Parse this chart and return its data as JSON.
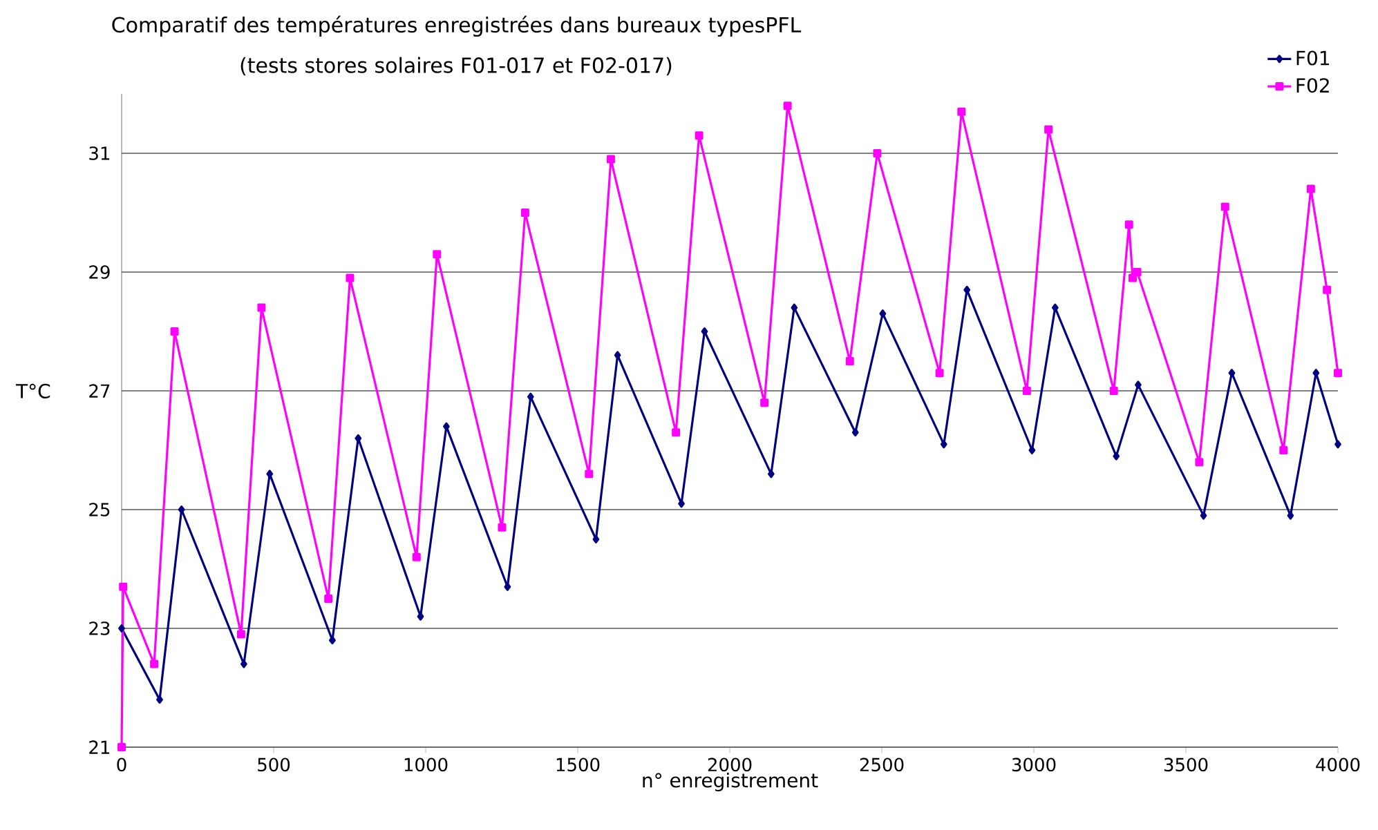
{
  "chart_data": {
    "type": "line",
    "title": "Comparatif des températures enregistrées dans bureaux typesPFL",
    "subtitle": "(tests stores solaires F01-017 et F02-017)",
    "xlabel": "n° enregistrement",
    "ylabel": "T°C",
    "xlim": [
      0,
      4000
    ],
    "xticks": [
      0,
      500,
      1000,
      1500,
      2000,
      2500,
      3000,
      3500,
      4000
    ],
    "ylim": [
      21,
      32
    ],
    "yticks": [
      21,
      23,
      25,
      27,
      29,
      31
    ],
    "grid": "y",
    "legend": "top right",
    "series": [
      {
        "name": "F01",
        "color": "#000080",
        "marker": "diamond",
        "x": [
          0,
          125,
          197,
          402,
          487,
          693,
          778,
          983,
          1068,
          1269,
          1345,
          1560,
          1631,
          1841,
          1917,
          2136,
          2212,
          2413,
          2503,
          2704,
          2780,
          2994,
          3070,
          3271,
          3343,
          3558,
          3651,
          3844,
          3928,
          4000
        ],
        "values": [
          23.0,
          21.8,
          25.0,
          22.4,
          25.6,
          22.8,
          26.2,
          23.2,
          26.4,
          23.7,
          26.9,
          24.5,
          27.6,
          25.1,
          28.0,
          25.6,
          28.4,
          26.3,
          28.3,
          26.1,
          28.7,
          26.0,
          28.4,
          25.9,
          27.1,
          24.9,
          27.3,
          24.9,
          27.3,
          26.1
        ]
      },
      {
        "name": "F02",
        "color": "#ff00ff",
        "marker": "square",
        "x": [
          0,
          5,
          107,
          174,
          393,
          460,
          680,
          751,
          970,
          1037,
          1251,
          1327,
          1537,
          1609,
          1823,
          1899,
          2114,
          2190,
          2395,
          2485,
          2690,
          2762,
          2977,
          3048,
          3263,
          3313,
          3325,
          3340,
          3544,
          3629,
          3821,
          3911,
          3964,
          4000
        ],
        "values": [
          21.0,
          23.7,
          22.4,
          28.0,
          22.9,
          28.4,
          23.5,
          28.9,
          24.2,
          29.3,
          24.7,
          30.0,
          25.6,
          30.9,
          26.3,
          31.3,
          26.8,
          31.8,
          27.5,
          31.0,
          27.3,
          31.7,
          27.0,
          31.4,
          27.0,
          29.8,
          28.9,
          29.0,
          25.8,
          30.1,
          26.0,
          30.4,
          28.7,
          27.3
        ]
      }
    ]
  }
}
